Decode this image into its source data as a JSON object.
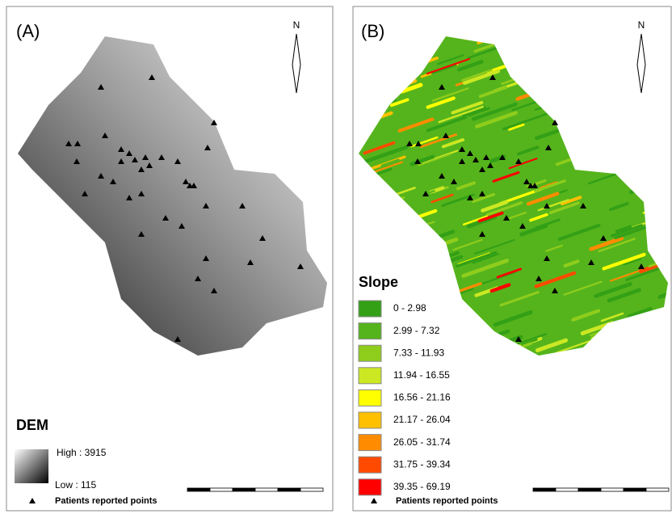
{
  "panels": [
    {
      "label": "(A)",
      "north": "N",
      "legend": {
        "title": "DEM",
        "high": "High : 3915",
        "low": "Low : 115"
      },
      "points_label": "Patients reported points"
    },
    {
      "label": "(B)",
      "north": "N",
      "legend": {
        "title": "Slope",
        "classes": [
          {
            "label": "0 - 2.98",
            "color": "#33a016"
          },
          {
            "label": "2.99 - 7.32",
            "color": "#55b41c"
          },
          {
            "label": "7.33 - 11.93",
            "color": "#8fcd1c"
          },
          {
            "label": "11.94 - 16.55",
            "color": "#cbe823"
          },
          {
            "label": "16.56 - 21.16",
            "color": "#ffff00"
          },
          {
            "label": "21.17 - 26.04",
            "color": "#ffc000"
          },
          {
            "label": "26.05 - 31.74",
            "color": "#ff8c00"
          },
          {
            "label": "31.75 - 39.34",
            "color": "#ff4a00"
          },
          {
            "label": "39.35 - 69.19",
            "color": "#ff0000"
          }
        ]
      },
      "points_label": "Patients reported points"
    }
  ]
}
